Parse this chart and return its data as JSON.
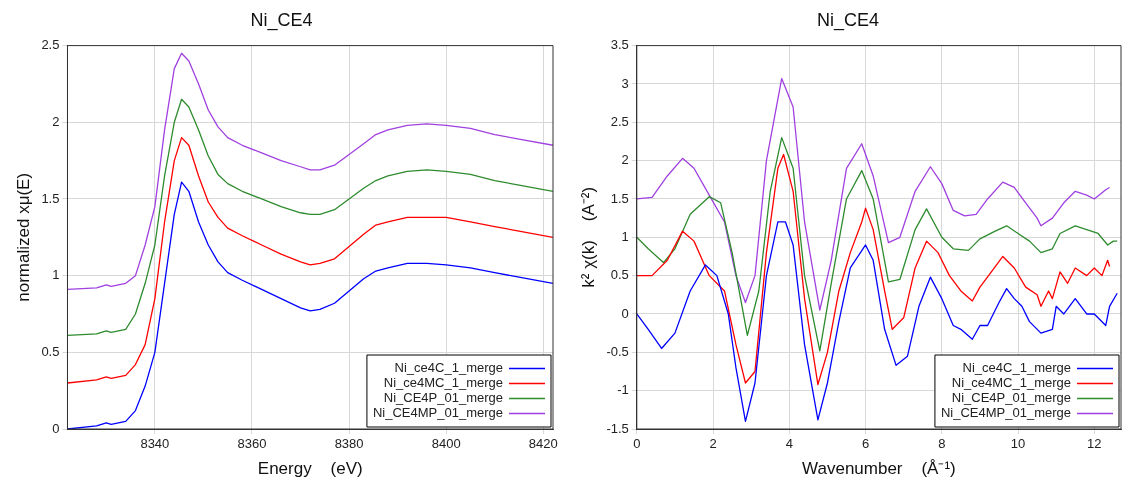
{
  "chart_data": [
    {
      "type": "line",
      "title": "Ni_CE4",
      "xlabel": "Energy    (eV)",
      "ylabel": "normalized xμ(E)",
      "xlim": [
        8322,
        8422
      ],
      "xticks": [
        8340,
        8360,
        8380,
        8400,
        8420
      ],
      "ylim": [
        0,
        2.5
      ],
      "yticks": [
        0,
        0.5,
        1,
        1.5,
        2,
        2.5
      ],
      "grid": true,
      "legend": "bottom right",
      "series": [
        {
          "name": "Ni_ce4C_1_merge",
          "color": "#0000ff",
          "x": [
            8322,
            8328,
            8330,
            8331,
            8334,
            8336,
            8338,
            8340,
            8342,
            8344,
            8345.5,
            8347,
            8349,
            8351,
            8353,
            8355,
            8358,
            8362,
            8366,
            8370,
            8372,
            8374,
            8377,
            8380,
            8383,
            8385.5,
            8388,
            8392,
            8396,
            8400,
            8405,
            8410,
            8415,
            8422
          ],
          "values": [
            0.0,
            0.02,
            0.04,
            0.03,
            0.05,
            0.12,
            0.28,
            0.5,
            0.95,
            1.4,
            1.61,
            1.55,
            1.35,
            1.2,
            1.09,
            1.02,
            0.97,
            0.91,
            0.85,
            0.79,
            0.77,
            0.78,
            0.82,
            0.9,
            0.98,
            1.03,
            1.05,
            1.08,
            1.08,
            1.07,
            1.05,
            1.02,
            0.99,
            0.95
          ]
        },
        {
          "name": "Ni_ce4MC_1_merge",
          "color": "#ff0000",
          "x": [
            8322,
            8328,
            8330,
            8331,
            8334,
            8336,
            8338,
            8340,
            8342,
            8344,
            8345.5,
            8347,
            8349,
            8351,
            8353,
            8355,
            8358,
            8362,
            8366,
            8370,
            8372,
            8374,
            8377,
            8380,
            8383,
            8385.5,
            8388,
            8392,
            8396,
            8400,
            8405,
            8410,
            8415,
            8422
          ],
          "values": [
            0.3,
            0.32,
            0.34,
            0.33,
            0.35,
            0.42,
            0.55,
            0.85,
            1.35,
            1.75,
            1.9,
            1.85,
            1.65,
            1.48,
            1.38,
            1.31,
            1.26,
            1.2,
            1.14,
            1.09,
            1.07,
            1.08,
            1.11,
            1.19,
            1.27,
            1.33,
            1.35,
            1.38,
            1.38,
            1.38,
            1.35,
            1.32,
            1.29,
            1.25
          ]
        },
        {
          "name": "Ni_CE4P_01_merge",
          "color": "#2e8b2e",
          "x": [
            8322,
            8328,
            8330,
            8331,
            8334,
            8336,
            8338,
            8340,
            8342,
            8344,
            8345.5,
            8347,
            8349,
            8351,
            8353,
            8355,
            8358,
            8362,
            8366,
            8370,
            8372,
            8374,
            8377,
            8380,
            8383,
            8385.5,
            8388,
            8392,
            8396,
            8400,
            8405,
            8410,
            8415,
            8422
          ],
          "values": [
            0.61,
            0.62,
            0.64,
            0.63,
            0.65,
            0.75,
            0.95,
            1.2,
            1.65,
            2.0,
            2.15,
            2.1,
            1.95,
            1.78,
            1.66,
            1.6,
            1.55,
            1.5,
            1.45,
            1.41,
            1.4,
            1.4,
            1.43,
            1.5,
            1.57,
            1.62,
            1.65,
            1.68,
            1.69,
            1.68,
            1.66,
            1.62,
            1.59,
            1.55
          ]
        },
        {
          "name": "Ni_CE4MP_01_merge",
          "color": "#a040e0",
          "x": [
            8322,
            8328,
            8330,
            8331,
            8334,
            8336,
            8338,
            8340,
            8342,
            8344,
            8345.5,
            8347,
            8349,
            8351,
            8353,
            8355,
            8358,
            8362,
            8366,
            8370,
            8372,
            8374,
            8377,
            8380,
            8383,
            8385.5,
            8388,
            8392,
            8396,
            8400,
            8405,
            8410,
            8415,
            8422
          ],
          "values": [
            0.91,
            0.92,
            0.94,
            0.93,
            0.95,
            1.0,
            1.2,
            1.45,
            1.95,
            2.35,
            2.45,
            2.4,
            2.25,
            2.08,
            1.97,
            1.9,
            1.85,
            1.8,
            1.75,
            1.71,
            1.69,
            1.69,
            1.72,
            1.79,
            1.86,
            1.92,
            1.95,
            1.98,
            1.99,
            1.98,
            1.96,
            1.92,
            1.89,
            1.85
          ]
        }
      ]
    },
    {
      "type": "line",
      "title": "Ni_CE4",
      "xlabel": "Wavenumber    (Å⁻¹)",
      "ylabel": "k² χ(k)    (A⁻²)",
      "xlim": [
        0,
        12.7
      ],
      "xticks": [
        0,
        2,
        4,
        6,
        8,
        10,
        12
      ],
      "ylim": [
        -1.5,
        3.5
      ],
      "yticks": [
        -1.5,
        -1,
        -0.5,
        0,
        0.5,
        1,
        1.5,
        2,
        2.5,
        3,
        3.5
      ],
      "grid": true,
      "legend": "bottom right",
      "series": [
        {
          "name": "Ni_ce4C_1_merge",
          "color": "#0000ff",
          "x": [
            0,
            0.3,
            0.65,
            1,
            1.4,
            1.8,
            2.1,
            2.4,
            2.6,
            2.85,
            3.1,
            3.4,
            3.7,
            3.9,
            4.1,
            4.4,
            4.75,
            5.0,
            5.3,
            5.6,
            5.8,
            6.0,
            6.2,
            6.5,
            6.8,
            7.1,
            7.4,
            7.7,
            8.0,
            8.3,
            8.5,
            8.8,
            9.0,
            9.2,
            9.5,
            9.7,
            9.9,
            10.1,
            10.3,
            10.6,
            10.9,
            11.0,
            11.2,
            11.5,
            11.8,
            12.0,
            12.3,
            12.4,
            12.6
          ],
          "values": [
            0,
            -0.2,
            -0.45,
            -0.25,
            0.3,
            0.64,
            0.5,
            0.0,
            -0.7,
            -1.4,
            -0.9,
            0.5,
            1.2,
            1.2,
            0.9,
            -0.4,
            -1.38,
            -0.9,
            -0.1,
            0.6,
            0.75,
            0.9,
            0.7,
            -0.2,
            -0.67,
            -0.55,
            0.1,
            0.48,
            0.2,
            -0.15,
            -0.2,
            -0.33,
            -0.15,
            -0.15,
            0.15,
            0.33,
            0.2,
            0.1,
            -0.1,
            -0.25,
            -0.2,
            0.1,
            0.0,
            0.2,
            0.0,
            0.0,
            -0.15,
            0.1,
            0.27
          ]
        },
        {
          "name": "Ni_ce4MC_1_merge",
          "color": "#ff0000",
          "x": [
            0,
            0.4,
            0.8,
            1.2,
            1.5,
            1.9,
            2.3,
            2.6,
            2.85,
            3.1,
            3.4,
            3.7,
            3.85,
            4.1,
            4.4,
            4.75,
            5.0,
            5.3,
            5.6,
            5.9,
            6.0,
            6.2,
            6.5,
            6.7,
            7.0,
            7.3,
            7.6,
            7.9,
            8.2,
            8.5,
            8.8,
            9.0,
            9.3,
            9.6,
            9.9,
            10.2,
            10.5,
            10.6,
            10.8,
            10.9,
            11.1,
            11.3,
            11.5,
            11.8,
            12.0,
            12.2,
            12.35,
            12.4
          ],
          "values": [
            0.5,
            0.5,
            0.7,
            1.08,
            0.95,
            0.5,
            0.3,
            -0.4,
            -0.9,
            -0.75,
            0.8,
            1.9,
            2.08,
            1.6,
            0.2,
            -0.92,
            -0.5,
            0.3,
            0.8,
            1.2,
            1.38,
            1.1,
            0.3,
            -0.2,
            -0.05,
            0.6,
            0.95,
            0.8,
            0.5,
            0.3,
            0.17,
            0.35,
            0.55,
            0.75,
            0.6,
            0.35,
            0.25,
            0.1,
            0.3,
            0.2,
            0.55,
            0.4,
            0.6,
            0.5,
            0.6,
            0.5,
            0.7,
            0.62
          ]
        },
        {
          "name": "Ni_CE4P_01_merge",
          "color": "#2e8b2e",
          "x": [
            0,
            0.3,
            0.7,
            1.0,
            1.4,
            1.9,
            2.2,
            2.5,
            2.9,
            3.2,
            3.5,
            3.8,
            4.1,
            4.4,
            4.8,
            5.1,
            5.5,
            5.9,
            6.2,
            6.6,
            6.9,
            7.3,
            7.6,
            8.0,
            8.3,
            8.7,
            9.0,
            9.4,
            9.7,
            10.0,
            10.3,
            10.6,
            10.9,
            11.1,
            11.5,
            11.8,
            12.1,
            12.35,
            12.5,
            12.6
          ],
          "values": [
            1.0,
            0.85,
            0.67,
            0.85,
            1.3,
            1.53,
            1.45,
            0.8,
            -0.28,
            0.3,
            1.6,
            2.3,
            1.9,
            0.5,
            -0.48,
            0.4,
            1.5,
            1.87,
            1.5,
            0.42,
            0.45,
            1.1,
            1.37,
            1.0,
            0.85,
            0.83,
            0.98,
            1.08,
            1.15,
            1.05,
            0.95,
            0.8,
            0.85,
            1.05,
            1.15,
            1.1,
            1.05,
            0.9,
            0.95,
            0.95
          ]
        },
        {
          "name": "Ni_CE4MP_01_merge",
          "color": "#a040e0",
          "x": [
            0,
            0.4,
            0.8,
            1.2,
            1.5,
            1.9,
            2.3,
            2.6,
            2.85,
            3.1,
            3.4,
            3.8,
            4.1,
            4.4,
            4.8,
            5.1,
            5.5,
            5.9,
            6.2,
            6.6,
            6.9,
            7.3,
            7.7,
            8.0,
            8.3,
            8.6,
            8.9,
            9.2,
            9.6,
            9.9,
            10.2,
            10.5,
            10.6,
            10.9,
            11.2,
            11.5,
            11.8,
            12.0,
            12.3,
            12.4
          ],
          "values": [
            1.5,
            1.52,
            1.8,
            2.03,
            1.9,
            1.55,
            1.2,
            0.5,
            0.15,
            0.5,
            2.0,
            3.07,
            2.7,
            1.2,
            0.05,
            0.7,
            1.9,
            2.22,
            1.8,
            0.93,
            1.0,
            1.6,
            1.92,
            1.7,
            1.35,
            1.28,
            1.3,
            1.5,
            1.72,
            1.65,
            1.45,
            1.25,
            1.15,
            1.25,
            1.45,
            1.6,
            1.55,
            1.5,
            1.62,
            1.65
          ]
        }
      ]
    }
  ]
}
